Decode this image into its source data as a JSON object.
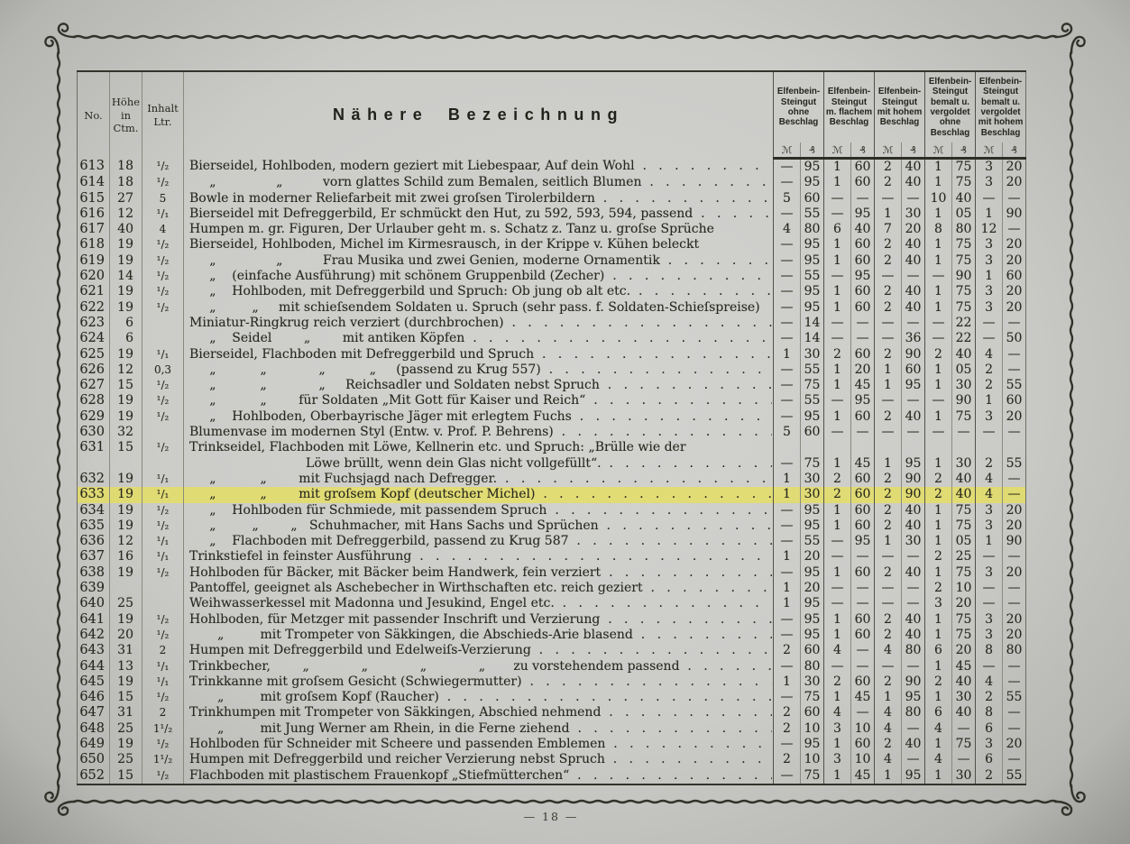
{
  "page": {
    "footer": "—  18  —"
  },
  "colors": {
    "paper": "#cbcbc8",
    "ink": "#28281f",
    "highlight": "#e9e053",
    "rule_dark": "#51514a",
    "rule_light": "#8a8a80"
  },
  "table": {
    "headers": {
      "no": "No.",
      "hoehe": "Höhe\nin\nCtm.",
      "inhalt": "Inhalt\nLtr.",
      "bezeichnung": "Nähere Bezeichnung",
      "groups": [
        "Elfenbein-\nSteingut\nohne\nBeschlag",
        "Elfenbein-\nSteingut\nm. flachem\nBeschlag",
        "Elfenbein-\nSteingut\nmit hohem\nBeschlag",
        "Elfenbein-\nSteingut\nbemalt u.\nvergoldet\nohne\nBeschlag",
        "Elfenbein-\nSteingut\nbemalt u.\nvergoldet\nmit hohem\nBeschlag"
      ],
      "mark": "ℳ",
      "pfennig": "₰"
    },
    "leader_dots": "  .   .   .   .   .   .   .   .   .   .   .   .   .   .   .   .   .   .   .   .   .   .   .   .   .   .   .   .   .   .   .   .   .   .   .",
    "rows": [
      {
        "no": "613",
        "h": "18",
        "l": "¹/₂",
        "d": "Bierseidel, Hohlboden, modern geziert mit Liebespaar, Auf dein Wohl",
        "p": [
          "—",
          "95",
          "1",
          "60",
          "2",
          "40",
          "1",
          "75",
          "3",
          "20"
        ]
      },
      {
        "no": "614",
        "h": "18",
        "l": "¹/₂",
        "d": "     „               „          vorn glattes Schild zum Bemalen, seitlich Blumen",
        "p": [
          "—",
          "95",
          "1",
          "60",
          "2",
          "40",
          "1",
          "75",
          "3",
          "20"
        ]
      },
      {
        "no": "615",
        "h": "27",
        "l": "5",
        "d": "Bowle in moderner Reliefarbeit mit zwei groſsen Tirolerbildern",
        "p": [
          "5",
          "60",
          "—",
          "—",
          "—",
          "—",
          "10",
          "40",
          "—",
          "—"
        ]
      },
      {
        "no": "616",
        "h": "12",
        "l": "¹/₁",
        "d": "Bierseidel mit Defreggerbild, Er schmückt den Hut, zu 592, 593, 594, passend",
        "p": [
          "—",
          "55",
          "—",
          "95",
          "1",
          "30",
          "1",
          "05",
          "1",
          "90"
        ]
      },
      {
        "no": "617",
        "h": "40",
        "l": "4",
        "d": "Humpen m. gr. Figuren, Der Urlauber geht m. s. Schatz z. Tanz u. groſse Sprüche",
        "p": [
          "4",
          "80",
          "6",
          "40",
          "7",
          "20",
          "8",
          "80",
          "12",
          "—"
        ],
        "dots": false
      },
      {
        "no": "618",
        "h": "19",
        "l": "¹/₂",
        "d": "Bierseidel, Hohlboden, Michel im Kirmesrausch, in der Krippe v. Kühen beleckt",
        "p": [
          "—",
          "95",
          "1",
          "60",
          "2",
          "40",
          "1",
          "75",
          "3",
          "20"
        ],
        "dots": false
      },
      {
        "no": "619",
        "h": "19",
        "l": "¹/₂",
        "d": "     „               „          Frau Musika und zwei Genien, moderne Ornamentik",
        "p": [
          "—",
          "95",
          "1",
          "60",
          "2",
          "40",
          "1",
          "75",
          "3",
          "20"
        ]
      },
      {
        "no": "620",
        "h": "14",
        "l": "¹/₂",
        "d": "     „    (einfache Ausführung) mit schönem Gruppenbild (Zecher)",
        "p": [
          "—",
          "55",
          "—",
          "95",
          "—",
          "—",
          "—",
          "90",
          "1",
          "60"
        ]
      },
      {
        "no": "621",
        "h": "19",
        "l": "¹/₂",
        "d": "     „    Hohlboden, mit Defreggerbild und Spruch: Ob jung ob alt etc.",
        "p": [
          "—",
          "95",
          "1",
          "60",
          "2",
          "40",
          "1",
          "75",
          "3",
          "20"
        ]
      },
      {
        "no": "622",
        "h": "19",
        "l": "¹/₂",
        "d": "     „         „     mit schieſsendem Soldaten u. Spruch (sehr pass. f. Soldaten-Schieſspreise)",
        "p": [
          "—",
          "95",
          "1",
          "60",
          "2",
          "40",
          "1",
          "75",
          "3",
          "20"
        ],
        "dots": false
      },
      {
        "no": "623",
        "h": "6",
        "l": "",
        "d": "Miniatur-Ringkrug reich verziert (durchbrochen)",
        "p": [
          "—",
          "14",
          "—",
          "—",
          "—",
          "—",
          "—",
          "22",
          "—",
          "—"
        ]
      },
      {
        "no": "624",
        "h": "6",
        "l": "",
        "d": "     „    Seidel        „        mit antiken Köpfen",
        "p": [
          "—",
          "14",
          "—",
          "—",
          "—",
          "36",
          "—",
          "22",
          "—",
          "50"
        ]
      },
      {
        "no": "625",
        "h": "19",
        "l": "¹/₁",
        "d": "Bierseidel, Flachboden mit Defreggerbild und Spruch",
        "p": [
          "1",
          "30",
          "2",
          "60",
          "2",
          "90",
          "2",
          "40",
          "4",
          "—"
        ]
      },
      {
        "no": "626",
        "h": "12",
        "l": "0,3",
        "d": "     „           „             „           „     (passend zu Krug 557)",
        "p": [
          "—",
          "55",
          "1",
          "20",
          "1",
          "60",
          "1",
          "05",
          "2",
          "—"
        ]
      },
      {
        "no": "627",
        "h": "15",
        "l": "¹/₂",
        "d": "     „           „             „     Reichsadler und Soldaten nebst Spruch",
        "p": [
          "—",
          "75",
          "1",
          "45",
          "1",
          "95",
          "1",
          "30",
          "2",
          "55"
        ]
      },
      {
        "no": "628",
        "h": "19",
        "l": "¹/₂",
        "d": "     „           „        für Soldaten „Mit Gott für Kaiser und Reich“",
        "p": [
          "—",
          "55",
          "—",
          "95",
          "—",
          "—",
          "—",
          "90",
          "1",
          "60"
        ]
      },
      {
        "no": "629",
        "h": "19",
        "l": "¹/₂",
        "d": "     „    Hohlboden, Oberbayrische Jäger mit erlegtem Fuchs",
        "p": [
          "—",
          "95",
          "1",
          "60",
          "2",
          "40",
          "1",
          "75",
          "3",
          "20"
        ]
      },
      {
        "no": "630",
        "h": "32",
        "l": "",
        "d": "Blumenvase im modernen Styl (Entw. v. Prof. P. Behrens)",
        "p": [
          "5",
          "60",
          "—",
          "—",
          "—",
          "—",
          "—",
          "—",
          "—",
          "—"
        ]
      },
      {
        "no": "631",
        "h": "15",
        "l": "¹/₂",
        "d": "Trinkseidel, Flachboden mit Löwe, Kellnerin etc. und Spruch: „Brülle wie der",
        "p": [
          "",
          "",
          "",
          "",
          "",
          "",
          "",
          "",
          "",
          ""
        ],
        "dots": false
      },
      {
        "no": "",
        "h": "",
        "l": "",
        "d": "                             Löwe brüllt, wenn dein Glas nicht vollgefüllt“.",
        "p": [
          "—",
          "75",
          "1",
          "45",
          "1",
          "95",
          "1",
          "30",
          "2",
          "55"
        ]
      },
      {
        "no": "632",
        "h": "19",
        "l": "¹/₁",
        "d": "     „           „        mit Fuchsjagd nach Defregger.",
        "p": [
          "1",
          "30",
          "2",
          "60",
          "2",
          "90",
          "2",
          "40",
          "4",
          "—"
        ]
      },
      {
        "no": "633",
        "h": "19",
        "l": "¹/₁",
        "d": "     „           „        mit groſsem Kopf (deutscher Michel)",
        "p": [
          "1",
          "30",
          "2",
          "60",
          "2",
          "90",
          "2",
          "40",
          "4",
          "—"
        ],
        "hl": true
      },
      {
        "no": "634",
        "h": "19",
        "l": "¹/₂",
        "d": "     „    Hohlboden für Schmiede, mit passendem Spruch",
        "p": [
          "—",
          "95",
          "1",
          "60",
          "2",
          "40",
          "1",
          "75",
          "3",
          "20"
        ]
      },
      {
        "no": "635",
        "h": "19",
        "l": "¹/₂",
        "d": "     „         „        „   Schuhmacher, mit Hans Sachs und Sprüchen",
        "p": [
          "—",
          "95",
          "1",
          "60",
          "2",
          "40",
          "1",
          "75",
          "3",
          "20"
        ]
      },
      {
        "no": "636",
        "h": "12",
        "l": "¹/₁",
        "d": "     „    Flachboden mit Defreggerbild, passend zu Krug 587",
        "p": [
          "—",
          "55",
          "—",
          "95",
          "1",
          "30",
          "1",
          "05",
          "1",
          "90"
        ]
      },
      {
        "no": "637",
        "h": "16",
        "l": "¹/₁",
        "d": "Trinkstiefel in feinster Ausführung",
        "p": [
          "1",
          "20",
          "—",
          "—",
          "—",
          "—",
          "2",
          "25",
          "—",
          "—"
        ]
      },
      {
        "no": "638",
        "h": "19",
        "l": "¹/₂",
        "d": "Hohlboden für Bäcker, mit Bäcker beim Handwerk, fein verziert",
        "p": [
          "—",
          "95",
          "1",
          "60",
          "2",
          "40",
          "1",
          "75",
          "3",
          "20"
        ]
      },
      {
        "no": "639",
        "h": "",
        "l": "",
        "d": "Pantoffel, geeignet als Aschebecher in Wirthschaften etc. reich geziert",
        "p": [
          "1",
          "20",
          "—",
          "—",
          "—",
          "—",
          "2",
          "10",
          "—",
          "—"
        ]
      },
      {
        "no": "640",
        "h": "25",
        "l": "",
        "d": "Weihwasserkessel mit Madonna und Jesukind, Engel etc.",
        "p": [
          "1",
          "95",
          "—",
          "—",
          "—",
          "—",
          "3",
          "20",
          "—",
          "—"
        ]
      },
      {
        "no": "641",
        "h": "19",
        "l": "¹/₂",
        "d": "Hohlboden, für Metzger mit passender Inschrift und Verzierung",
        "p": [
          "—",
          "95",
          "1",
          "60",
          "2",
          "40",
          "1",
          "75",
          "3",
          "20"
        ]
      },
      {
        "no": "642",
        "h": "20",
        "l": "¹/₂",
        "d": "       „         mit Trompeter von Säkkingen, die Abschieds-Arie blasend",
        "p": [
          "—",
          "95",
          "1",
          "60",
          "2",
          "40",
          "1",
          "75",
          "3",
          "20"
        ]
      },
      {
        "no": "643",
        "h": "31",
        "l": "2",
        "d": "Humpen mit Defreggerbild und Edelweiſs-Verzierung",
        "p": [
          "2",
          "60",
          "4",
          "—",
          "4",
          "80",
          "6",
          "20",
          "8",
          "80"
        ]
      },
      {
        "no": "644",
        "h": "13",
        "l": "¹/₁",
        "d": "Trinkbecher,        „             „             „             „       zu vorstehendem passend",
        "p": [
          "—",
          "80",
          "—",
          "—",
          "—",
          "—",
          "1",
          "45",
          "—",
          "—"
        ]
      },
      {
        "no": "645",
        "h": "19",
        "l": "¹/₁",
        "d": "Trinkkanne mit groſsem Gesicht (Schwiegermutter)",
        "p": [
          "1",
          "30",
          "2",
          "60",
          "2",
          "90",
          "2",
          "40",
          "4",
          "—"
        ]
      },
      {
        "no": "646",
        "h": "15",
        "l": "¹/₂",
        "d": "       „         mit groſsem Kopf (Raucher)",
        "p": [
          "—",
          "75",
          "1",
          "45",
          "1",
          "95",
          "1",
          "30",
          "2",
          "55"
        ]
      },
      {
        "no": "647",
        "h": "31",
        "l": "2",
        "d": "Trinkhumpen mit Trompeter von Säkkingen, Abschied nehmend",
        "p": [
          "2",
          "60",
          "4",
          "—",
          "4",
          "80",
          "6",
          "40",
          "8",
          "—"
        ]
      },
      {
        "no": "648",
        "h": "25",
        "l": "1¹/₂",
        "d": "       „         mit Jung Werner am Rhein, in die Ferne ziehend",
        "p": [
          "2",
          "10",
          "3",
          "10",
          "4",
          "—",
          "4",
          "—",
          "6",
          "—"
        ]
      },
      {
        "no": "649",
        "h": "19",
        "l": "¹/₂",
        "d": "Hohlboden für Schneider mit Scheere und passenden Emblemen",
        "p": [
          "—",
          "95",
          "1",
          "60",
          "2",
          "40",
          "1",
          "75",
          "3",
          "20"
        ]
      },
      {
        "no": "650",
        "h": "25",
        "l": "1¹/₂",
        "d": "Humpen mit Defreggerbild und reicher Verzierung nebst Spruch",
        "p": [
          "2",
          "10",
          "3",
          "10",
          "4",
          "—",
          "4",
          "—",
          "6",
          "—"
        ]
      },
      {
        "no": "652",
        "h": "15",
        "l": "¹/₂",
        "d": "Flachboden mit plastischem Frauenkopf „Stiefmütterchen“",
        "p": [
          "—",
          "75",
          "1",
          "45",
          "1",
          "95",
          "1",
          "30",
          "2",
          "55"
        ]
      }
    ]
  }
}
